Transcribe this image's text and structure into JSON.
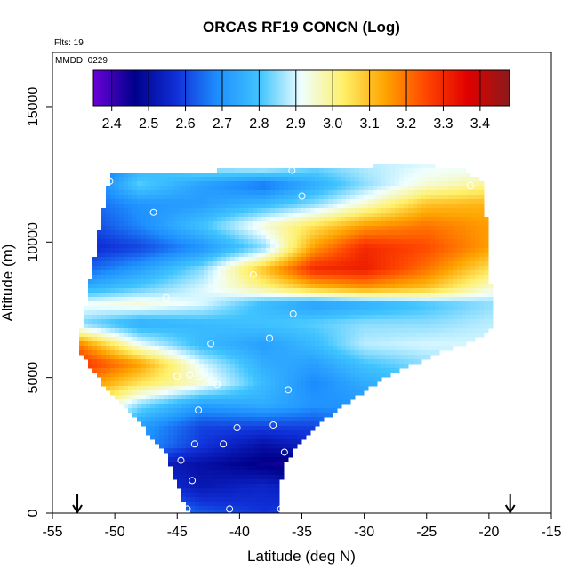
{
  "chart_data": {
    "type": "heatmap",
    "title": "ORCAS RF19 CONCN (Log)",
    "xlabel": "Latitude (deg N)",
    "ylabel": "Altitude (m)",
    "xlim": [
      -55,
      -15
    ],
    "ylim": [
      0,
      17000
    ],
    "x_ticks": [
      -55,
      -50,
      -45,
      -40,
      -35,
      -30,
      -25,
      -20,
      -15
    ],
    "y_ticks": [
      0,
      5000,
      10000,
      15000
    ],
    "flights_label": "Flts: 19",
    "date_label": "MMDD: 0229",
    "colorbar": {
      "range": [
        2.35,
        3.48
      ],
      "ticks": [
        2.4,
        2.5,
        2.6,
        2.7,
        2.8,
        2.9,
        3.0,
        3.1,
        3.2,
        3.3,
        3.4
      ],
      "tick_labels": [
        "2.4",
        "2.5",
        "2.6",
        "2.7",
        "2.8",
        "2.9",
        "3.0",
        "3.1",
        "3.2",
        "3.3",
        "3.4"
      ],
      "colors": [
        "#6a00d8",
        "#00008b",
        "#1030d8",
        "#1e90ff",
        "#40c4ff",
        "#f0ffff",
        "#fff06a",
        "#ffa500",
        "#ff4500",
        "#e00000",
        "#8b1a1a"
      ]
    },
    "grid": false,
    "legend": "none",
    "profile_bounds": [
      [
        -50.4,
        12500
      ],
      [
        -44.5,
        12600
      ],
      [
        -39,
        12700
      ],
      [
        -34,
        12800
      ],
      [
        -30,
        12800
      ],
      [
        -26,
        12900
      ],
      [
        -22,
        12700
      ],
      [
        -20.5,
        12200
      ],
      [
        -20,
        9800
      ],
      [
        -19.8,
        7600
      ],
      [
        -19.6,
        6900
      ],
      [
        -21,
        6400
      ],
      [
        -23,
        6100
      ],
      [
        -25,
        5700
      ],
      [
        -27,
        5300
      ],
      [
        -29,
        4800
      ],
      [
        -31,
        4200
      ],
      [
        -33,
        3500
      ],
      [
        -35,
        2700
      ],
      [
        -36.5,
        1700
      ],
      [
        -37,
        0
      ],
      [
        -44,
        0
      ],
      [
        -45,
        1000
      ],
      [
        -46,
        2300
      ],
      [
        -48,
        3300
      ],
      [
        -50,
        4200
      ],
      [
        -52.5,
        5700
      ],
      [
        -53,
        6300
      ],
      [
        -52.5,
        7100
      ],
      [
        -52,
        8500
      ],
      [
        -51,
        11000
      ]
    ],
    "field_bands": [
      {
        "alt": 0,
        "values": [
          2.78,
          2.72,
          2.62,
          2.58,
          2.6,
          2.66,
          2.7,
          2.75
        ]
      },
      {
        "alt": 1000,
        "values": [
          2.8,
          2.6,
          2.52,
          2.55,
          2.5,
          2.6,
          2.7,
          2.75
        ]
      },
      {
        "alt": 1800,
        "values": [
          2.75,
          2.55,
          2.5,
          2.45,
          2.42,
          2.55,
          2.7,
          2.75
        ]
      },
      {
        "alt": 2500,
        "values": [
          2.8,
          2.7,
          2.58,
          2.5,
          2.55,
          2.65,
          2.72,
          2.78
        ]
      },
      {
        "alt": 3200,
        "values": [
          2.95,
          2.72,
          2.6,
          2.6,
          2.6,
          2.68,
          2.75,
          2.78
        ]
      },
      {
        "alt": 4000,
        "values": [
          3.1,
          2.85,
          2.72,
          2.75,
          2.7,
          2.7,
          2.78,
          2.8
        ]
      },
      {
        "alt": 4800,
        "values": [
          3.2,
          3.05,
          2.95,
          2.78,
          2.68,
          2.75,
          2.8,
          2.82
        ]
      },
      {
        "alt": 5500,
        "values": [
          3.3,
          3.15,
          2.9,
          2.75,
          2.72,
          2.8,
          2.85,
          2.85
        ]
      },
      {
        "alt": 6200,
        "values": [
          3.2,
          2.92,
          2.78,
          2.72,
          2.78,
          2.88,
          2.9,
          2.9
        ]
      },
      {
        "alt": 7000,
        "values": [
          2.85,
          2.75,
          2.78,
          2.8,
          2.82,
          2.85,
          2.85,
          2.88
        ]
      },
      {
        "alt": 7700,
        "values": [
          2.92,
          2.95,
          2.9,
          2.78,
          2.72,
          2.75,
          2.8,
          2.85
        ]
      },
      {
        "alt": 8300,
        "values": [
          2.75,
          2.82,
          2.9,
          3.0,
          3.1,
          3.15,
          3.1,
          2.95
        ]
      },
      {
        "alt": 9000,
        "values": [
          2.62,
          2.72,
          2.85,
          3.1,
          3.3,
          3.32,
          3.2,
          3.05
        ]
      },
      {
        "alt": 9800,
        "values": [
          2.55,
          2.6,
          2.7,
          2.85,
          3.15,
          3.3,
          3.25,
          3.15
        ]
      },
      {
        "alt": 10600,
        "values": [
          2.58,
          2.68,
          2.8,
          2.95,
          3.05,
          3.15,
          3.2,
          3.15
        ]
      },
      {
        "alt": 11400,
        "values": [
          2.62,
          2.7,
          2.72,
          2.78,
          2.85,
          2.95,
          3.1,
          3.12
        ]
      },
      {
        "alt": 12100,
        "values": [
          2.6,
          2.82,
          2.72,
          2.65,
          2.75,
          2.85,
          2.95,
          3.0
        ]
      },
      {
        "alt": 12900,
        "values": [
          2.55,
          2.75,
          2.9,
          2.95,
          2.85,
          2.88,
          2.9,
          2.9
        ]
      }
    ],
    "field_lats": [
      -53,
      -48,
      -43,
      -38,
      -34,
      -30,
      -25,
      -20
    ],
    "observations": [
      {
        "lat": -50.4,
        "alt": 12250
      },
      {
        "lat": -46.9,
        "alt": 11100
      },
      {
        "lat": -35.8,
        "alt": 12650
      },
      {
        "lat": -35.0,
        "alt": 11700
      },
      {
        "lat": -21.5,
        "alt": 12100
      },
      {
        "lat": -45.9,
        "alt": 7950
      },
      {
        "lat": -38.9,
        "alt": 8800
      },
      {
        "lat": -35.7,
        "alt": 7350
      },
      {
        "lat": -42.3,
        "alt": 6250
      },
      {
        "lat": -37.6,
        "alt": 6450
      },
      {
        "lat": -45.0,
        "alt": 5050
      },
      {
        "lat": -44.0,
        "alt": 5100
      },
      {
        "lat": -43.2,
        "alt": 5050
      },
      {
        "lat": -41.8,
        "alt": 4750
      },
      {
        "lat": -36.1,
        "alt": 4550
      },
      {
        "lat": -43.3,
        "alt": 3800
      },
      {
        "lat": -40.2,
        "alt": 3150
      },
      {
        "lat": -37.3,
        "alt": 3250
      },
      {
        "lat": -43.6,
        "alt": 2550
      },
      {
        "lat": -41.3,
        "alt": 2550
      },
      {
        "lat": -36.4,
        "alt": 2250
      },
      {
        "lat": -44.7,
        "alt": 1950
      },
      {
        "lat": -43.8,
        "alt": 1200
      },
      {
        "lat": -44.2,
        "alt": 150
      },
      {
        "lat": -40.8,
        "alt": 150
      },
      {
        "lat": -36.7,
        "alt": 150
      }
    ],
    "arrows": [
      -53,
      -18.3
    ]
  }
}
